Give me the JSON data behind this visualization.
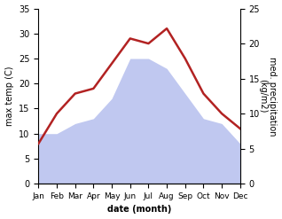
{
  "months": [
    "Jan",
    "Feb",
    "Mar",
    "Apr",
    "May",
    "Jun",
    "Jul",
    "Aug",
    "Sep",
    "Oct",
    "Nov",
    "Dec"
  ],
  "temperature": [
    8,
    14,
    18,
    19,
    24,
    29,
    28,
    31,
    25,
    18,
    14,
    11
  ],
  "precipitation_left_scale": [
    10,
    10,
    12,
    13,
    17,
    25,
    25,
    23,
    18,
    13,
    12,
    8
  ],
  "temp_color": "#b22222",
  "precip_color": "#c0c8f0",
  "xlabel": "date (month)",
  "ylabel_left": "max temp (C)",
  "ylabel_right": "med. precipitation\n(kg/m2)",
  "ylim_left": [
    0,
    35
  ],
  "ylim_right": [
    0,
    25
  ],
  "yticks_left": [
    0,
    5,
    10,
    15,
    20,
    25,
    30,
    35
  ],
  "yticks_right": [
    0,
    5,
    10,
    15,
    20,
    25
  ],
  "background_color": "#ffffff",
  "line_width": 1.8
}
